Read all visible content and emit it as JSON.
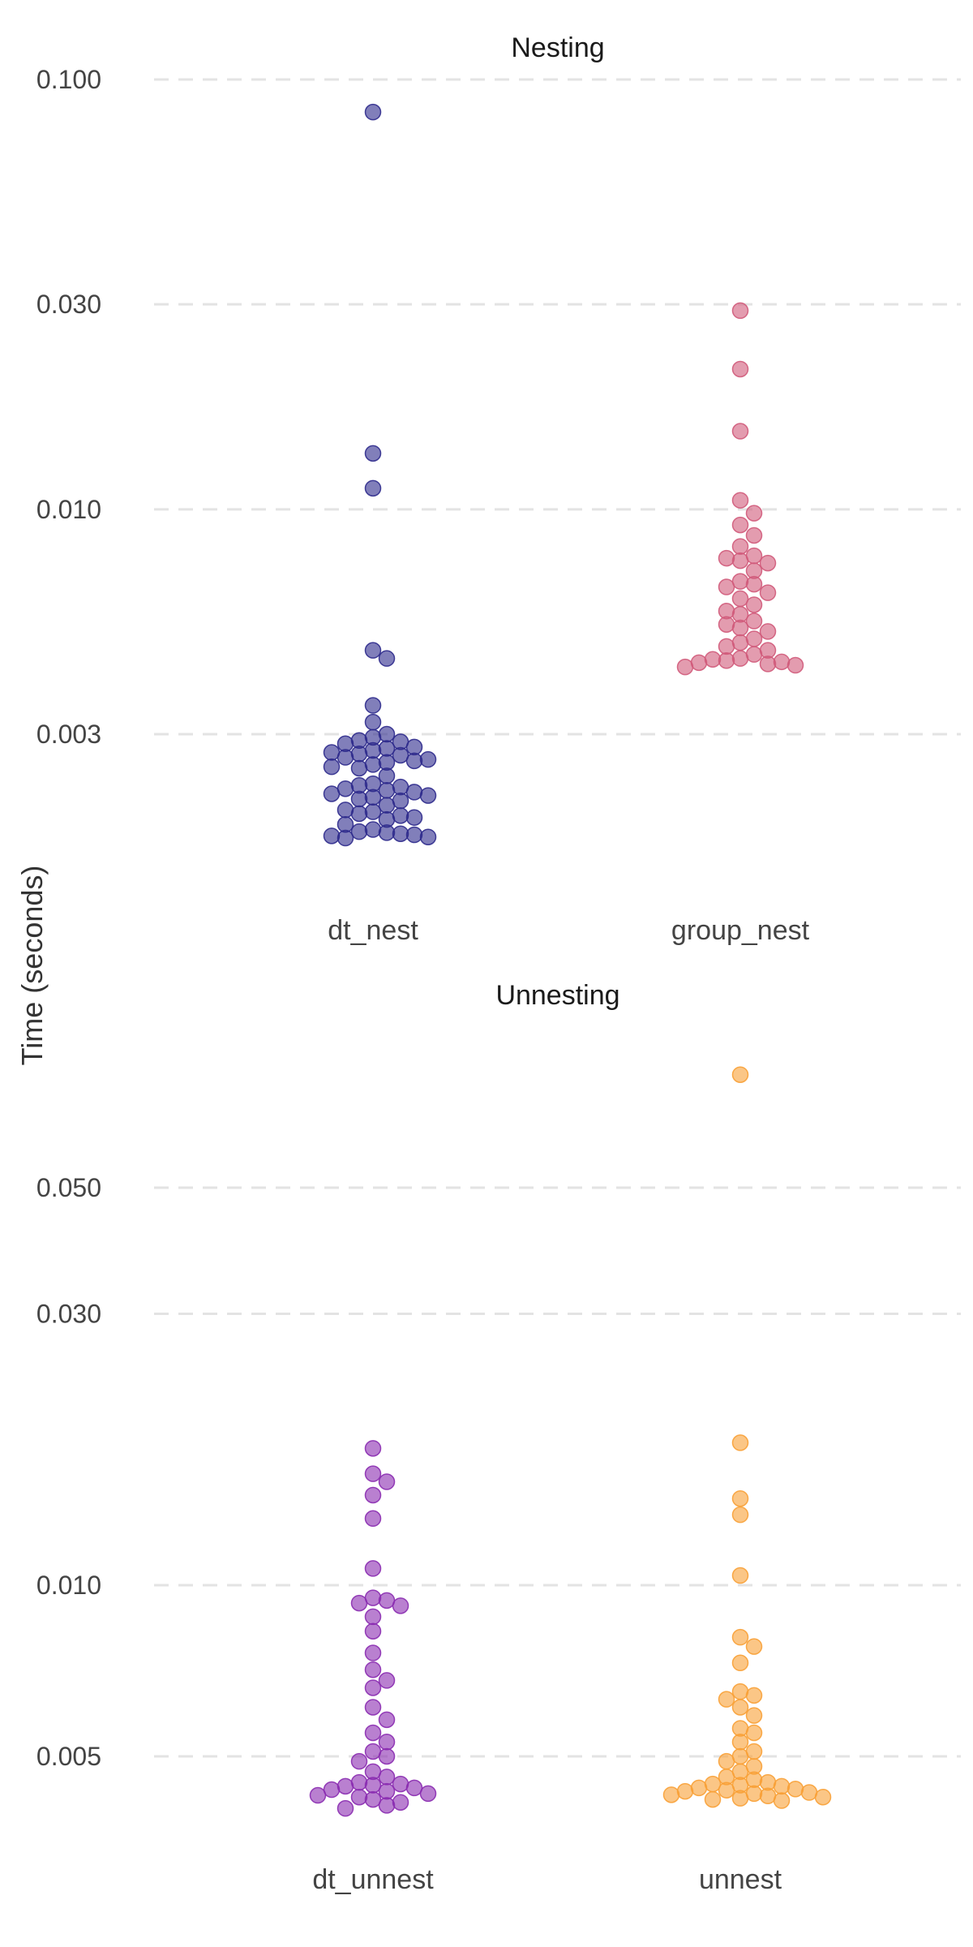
{
  "ylabel": "Time (seconds)",
  "chart_data": [
    {
      "type": "scatter",
      "title": "Nesting",
      "scale": "log",
      "ylim": [
        0.0015,
        0.1
      ],
      "yticks": [
        0.1,
        0.03,
        0.01,
        0.003
      ],
      "ytick_labels": [
        "0.100",
        "0.030",
        "0.010",
        "0.003"
      ],
      "categories": [
        "dt_nest",
        "group_nest"
      ],
      "series": [
        {
          "category": "dt_nest",
          "color": "#2d2a8c",
          "values": [
            0.084,
            0.0135,
            0.0112,
            0.0047,
            0.0045,
            0.0035,
            0.0032,
            0.003,
            0.00295,
            0.0029,
            0.00288,
            0.00285,
            0.0028,
            0.00278,
            0.00275,
            0.00272,
            0.0027,
            0.00268,
            0.00265,
            0.00262,
            0.0026,
            0.00258,
            0.00255,
            0.00252,
            0.0025,
            0.0024,
            0.0023,
            0.00228,
            0.00226,
            0.00224,
            0.00222,
            0.0022,
            0.00218,
            0.00216,
            0.00214,
            0.00212,
            0.0021,
            0.00205,
            0.002,
            0.00198,
            0.00196,
            0.00194,
            0.00192,
            0.0019,
            0.00185,
            0.0018,
            0.00178,
            0.00177,
            0.00176,
            0.00175,
            0.00174,
            0.00173,
            0.00172
          ]
        },
        {
          "category": "group_nest",
          "color": "#d05a7a",
          "values": [
            0.029,
            0.0212,
            0.0152,
            0.0105,
            0.0098,
            0.0092,
            0.0087,
            0.0082,
            0.0078,
            0.0077,
            0.0076,
            0.0075,
            0.0072,
            0.0068,
            0.0067,
            0.0066,
            0.0064,
            0.0062,
            0.006,
            0.0058,
            0.0057,
            0.0055,
            0.0054,
            0.0053,
            0.0052,
            0.005,
            0.0049,
            0.0048,
            0.0047,
            0.0046,
            0.0045,
            0.00448,
            0.00445,
            0.00442,
            0.0044,
            0.00437,
            0.00434,
            0.0043
          ]
        }
      ]
    },
    {
      "type": "scatter",
      "title": "Unnesting",
      "scale": "log",
      "ylim": [
        0.0039,
        0.095
      ],
      "yticks": [
        0.05,
        0.03,
        0.01,
        0.005
      ],
      "ytick_labels": [
        "0.050",
        "0.030",
        "0.010",
        "0.005"
      ],
      "categories": [
        "dt_unnest",
        "unnest"
      ],
      "series": [
        {
          "category": "dt_unnest",
          "color": "#8a2bb0",
          "values": [
            0.0174,
            0.0157,
            0.0152,
            0.0144,
            0.0131,
            0.0107,
            0.0095,
            0.0094,
            0.0093,
            0.0092,
            0.0088,
            0.0083,
            0.0076,
            0.0071,
            0.0068,
            0.0066,
            0.0061,
            0.0058,
            0.0055,
            0.0053,
            0.0051,
            0.005,
            0.0049,
            0.0047,
            0.0046,
            0.0045,
            0.00447,
            0.00445,
            0.00443,
            0.0044,
            0.00437,
            0.00434,
            0.0043,
            0.00427,
            0.00424,
            0.0042,
            0.00415,
            0.0041,
            0.00405
          ]
        },
        {
          "category": "unnest",
          "color": "#f8a035",
          "values": [
            0.079,
            0.0178,
            0.0142,
            0.0133,
            0.0104,
            0.0081,
            0.0078,
            0.0073,
            0.0065,
            0.0064,
            0.0063,
            0.0061,
            0.0059,
            0.0056,
            0.0055,
            0.0053,
            0.0051,
            0.005,
            0.0049,
            0.0048,
            0.0047,
            0.0046,
            0.00455,
            0.0045,
            0.00447,
            0.00445,
            0.00443,
            0.0044,
            0.00438,
            0.00436,
            0.00434,
            0.00432,
            0.0043,
            0.00428,
            0.00426,
            0.00424,
            0.00422,
            0.0042,
            0.00418
          ]
        }
      ]
    }
  ]
}
